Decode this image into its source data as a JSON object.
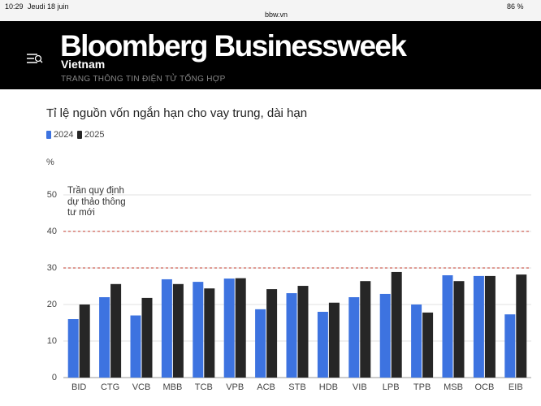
{
  "status_bar": {
    "time": "10:29",
    "date": "Jeudi 18 juin",
    "url": "bbw.vn",
    "battery": "86 %"
  },
  "header": {
    "logo": "Bloomberg Businessweek",
    "edition": "Vietnam",
    "tagline": "TRANG THÔNG TIN ĐIỆN TỬ TỔNG HỢP"
  },
  "chart_data": {
    "type": "bar",
    "title": "Tỉ lệ nguồn vốn ngắn hạn cho vay trung, dài hạn",
    "y_label": "%",
    "categories": [
      "BID",
      "CTG",
      "VCB",
      "MBB",
      "TCB",
      "VPB",
      "ACB",
      "STB",
      "HDB",
      "VIB",
      "LPB",
      "TPB",
      "MSB",
      "OCB",
      "EIB"
    ],
    "series": [
      {
        "name": "2024",
        "color": "#3d73e0",
        "values": [
          16,
          22,
          17,
          26.9,
          26.2,
          27.1,
          18.7,
          23.1,
          18,
          22,
          22.9,
          20,
          28,
          27.8,
          17.3
        ]
      },
      {
        "name": "2025",
        "color": "#262626",
        "values": [
          20,
          25.6,
          21.8,
          25.6,
          24.4,
          27.2,
          24.2,
          25.1,
          20.5,
          26.4,
          28.9,
          17.8,
          26.4,
          27.8,
          28.2
        ]
      }
    ],
    "ylim": [
      0,
      50
    ],
    "yticks": [
      0,
      10,
      20,
      30,
      40,
      50
    ],
    "grid": true,
    "reference_lines": {
      "values": [
        40,
        30
      ],
      "color": "#c0392b"
    },
    "annotation": "Trần quy định dự thảo thông tư mới"
  }
}
